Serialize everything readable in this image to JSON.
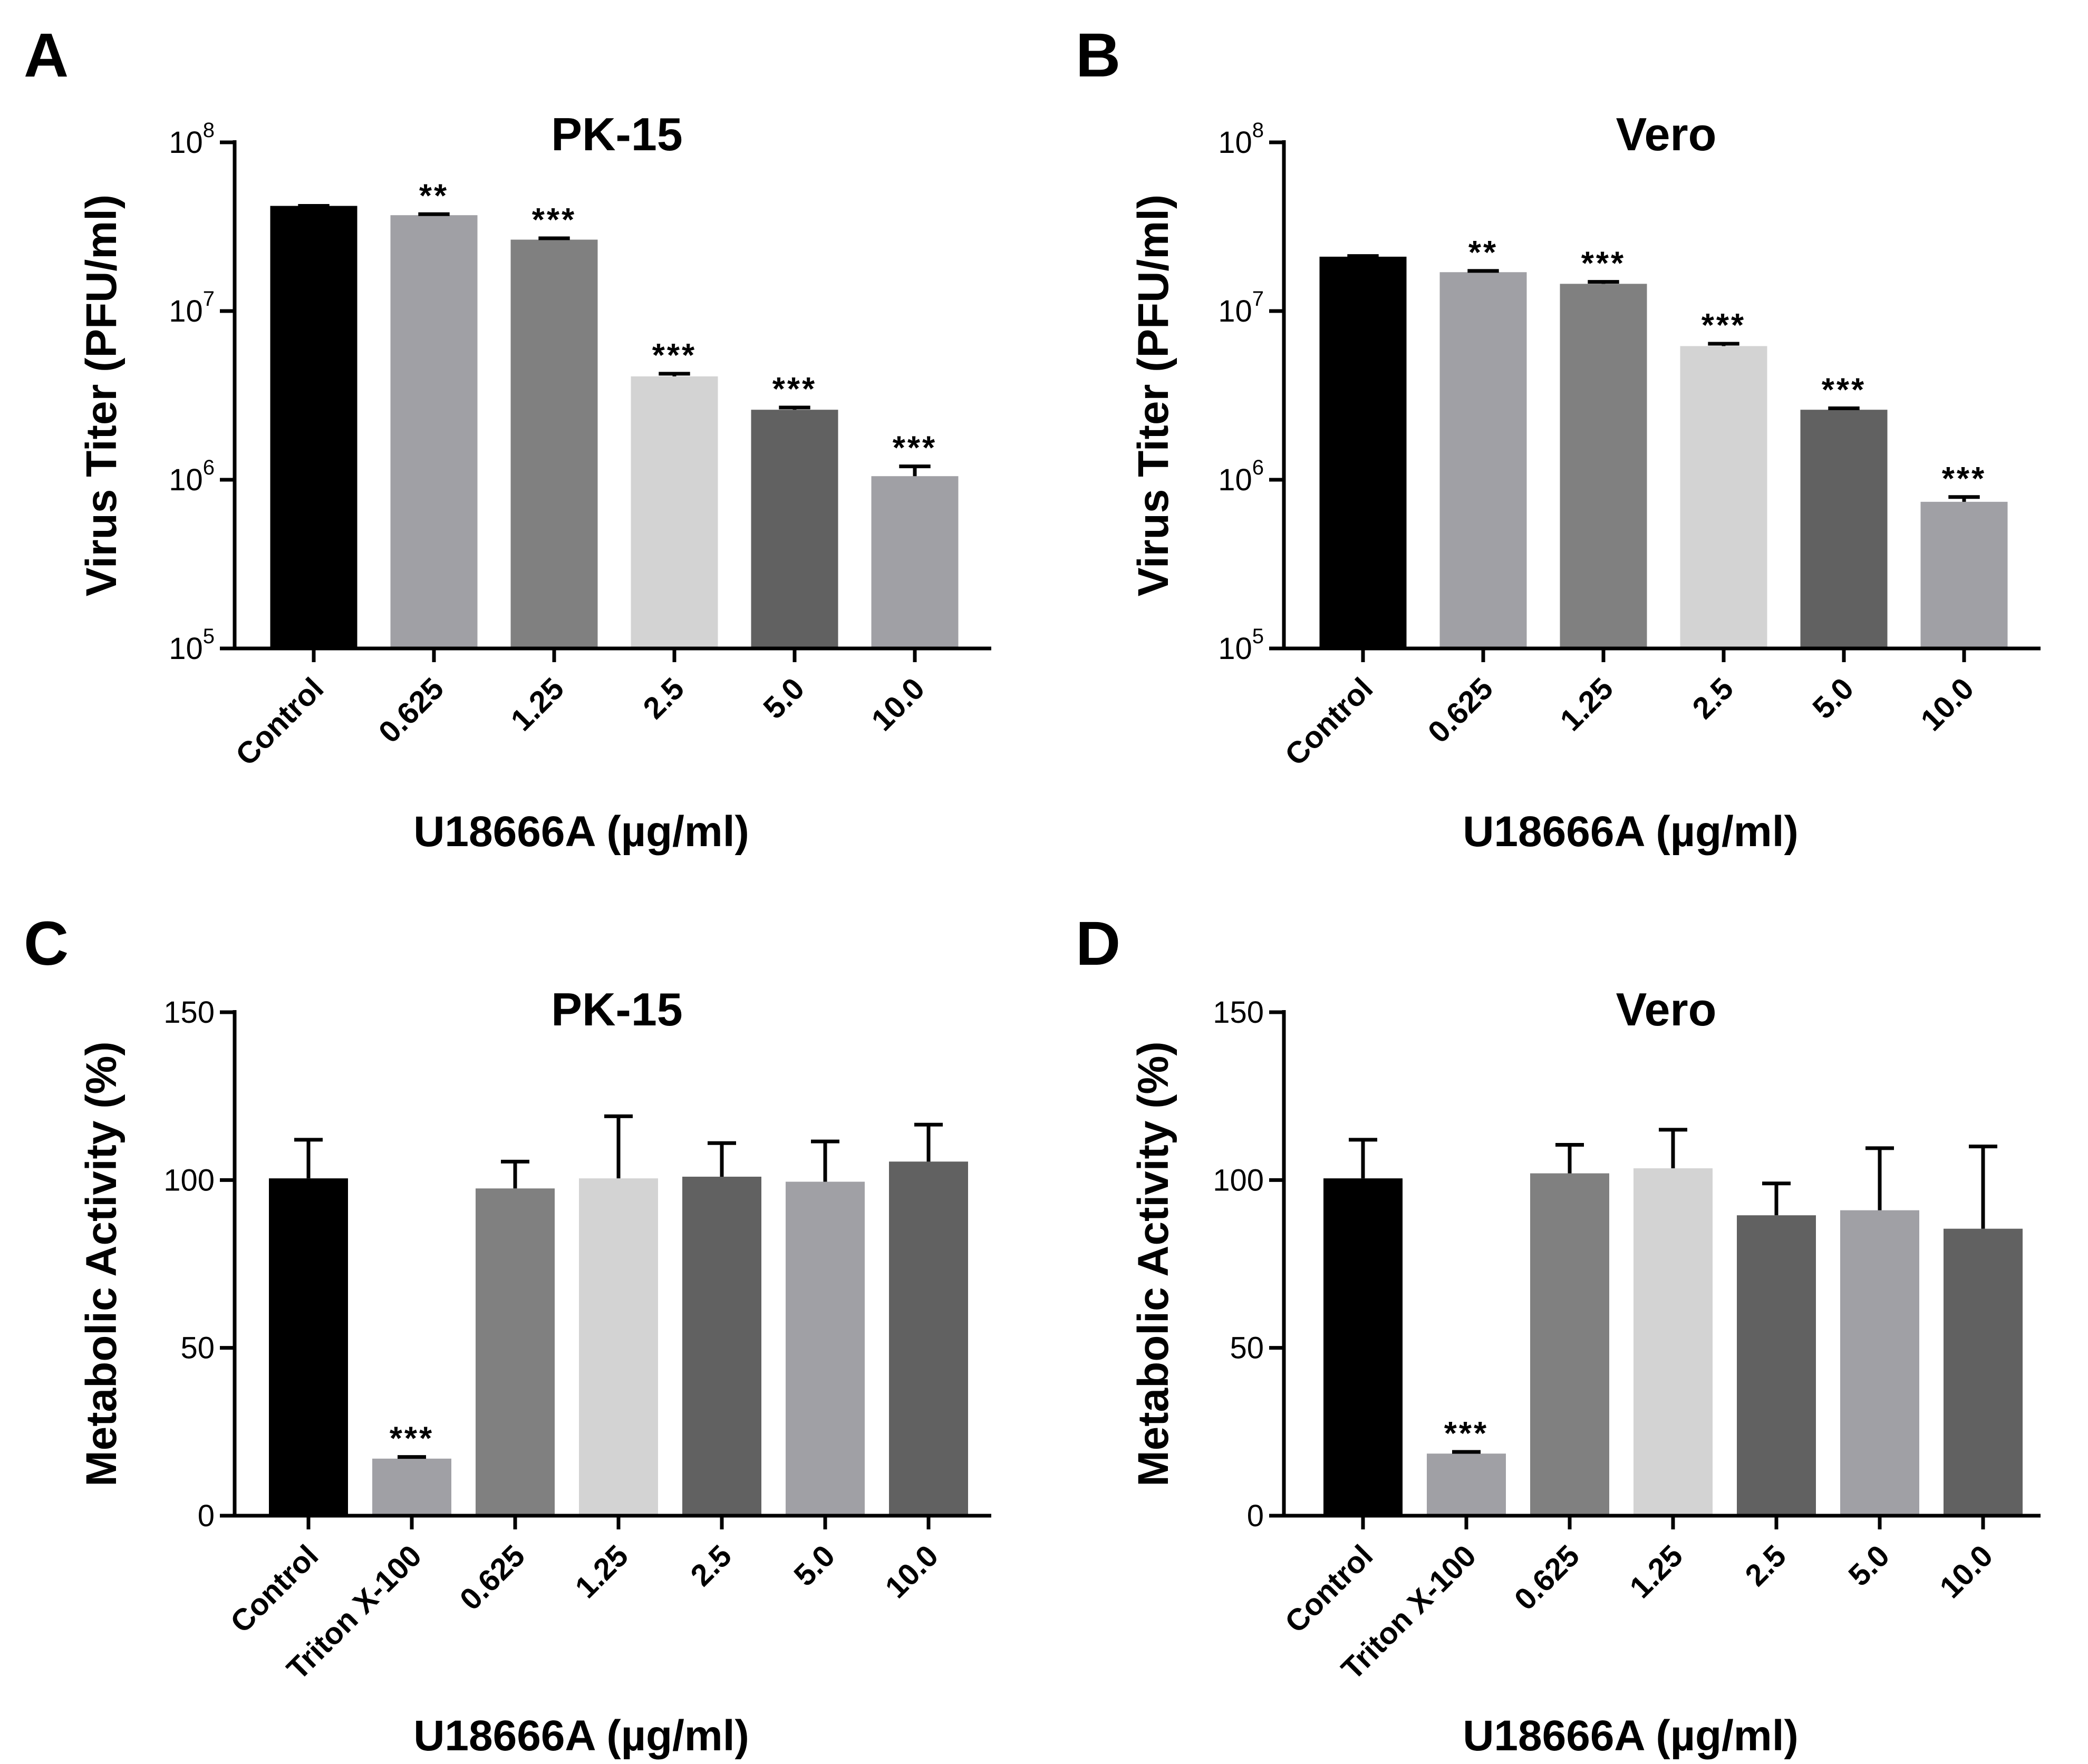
{
  "chart_data": [
    {
      "panel": "A",
      "type": "bar",
      "title": "PK-15",
      "ylabel": "Virus Titer (PFU/ml)",
      "xlabel": "U18666A (µg/ml)",
      "yscale": "log",
      "ylim": [
        100000,
        100000000
      ],
      "yticks": [
        {
          "value": 100000,
          "base": "10",
          "exp": "5"
        },
        {
          "value": 1000000,
          "base": "10",
          "exp": "6"
        },
        {
          "value": 10000000,
          "base": "10",
          "exp": "7"
        },
        {
          "value": 100000000,
          "base": "10",
          "exp": "8"
        }
      ],
      "categories": [
        "Control",
        "0.625",
        "1.25",
        "2.5",
        "5.0",
        "10.0"
      ],
      "values": [
        42000000,
        37000000,
        26500000,
        4100000,
        2600000,
        1050000
      ],
      "errors": [
        0,
        500000,
        500000,
        150000,
        80000,
        150000
      ],
      "significance": [
        "",
        "**",
        "***",
        "***",
        "***",
        "***"
      ],
      "colors": [
        "#000000",
        "#a0a0a5",
        "#808080",
        "#d3d3d3",
        "#616161",
        "#a0a0a5"
      ]
    },
    {
      "panel": "B",
      "type": "bar",
      "title": "Vero",
      "ylabel": "Virus Titer (PFU/ml)",
      "xlabel": "U18666A (µg/ml)",
      "yscale": "log",
      "ylim": [
        100000,
        100000000
      ],
      "yticks": [
        {
          "value": 100000,
          "base": "10",
          "exp": "5"
        },
        {
          "value": 1000000,
          "base": "10",
          "exp": "6"
        },
        {
          "value": 10000000,
          "base": "10",
          "exp": "7"
        },
        {
          "value": 100000000,
          "base": "10",
          "exp": "8"
        }
      ],
      "categories": [
        "Control",
        "0.625",
        "1.25",
        "2.5",
        "5.0",
        "10.0"
      ],
      "values": [
        21000000,
        17000000,
        14500000,
        6200000,
        2600000,
        740000
      ],
      "errors": [
        200000,
        300000,
        400000,
        200000,
        50000,
        50000
      ],
      "significance": [
        "",
        "**",
        "***",
        "***",
        "***",
        "***"
      ],
      "colors": [
        "#000000",
        "#a0a0a5",
        "#808080",
        "#d3d3d3",
        "#616161",
        "#a0a0a5"
      ]
    },
    {
      "panel": "C",
      "type": "bar",
      "title": "PK-15",
      "ylabel": "Metabolic Activity (%)",
      "xlabel": "U18666A (µg/ml)",
      "yscale": "linear",
      "ylim": [
        0,
        150
      ],
      "yticks": [
        {
          "value": 0,
          "label": "0"
        },
        {
          "value": 50,
          "label": "50"
        },
        {
          "value": 100,
          "label": "100"
        },
        {
          "value": 150,
          "label": "150"
        }
      ],
      "categories": [
        "Control",
        "Triton X-100",
        "0.625",
        "1.25",
        "2.5",
        "5.0",
        "10.0"
      ],
      "values": [
        100.5,
        17,
        97.5,
        100.5,
        101,
        99.5,
        105.5
      ],
      "errors": [
        11.5,
        0.5,
        8,
        18.5,
        10,
        12,
        11
      ],
      "significance": [
        "",
        "***",
        "",
        "",
        "",
        "",
        ""
      ],
      "colors": [
        "#000000",
        "#a0a0a5",
        "#808080",
        "#d3d3d3",
        "#616161",
        "#a0a0a5",
        "#616161"
      ]
    },
    {
      "panel": "D",
      "type": "bar",
      "title": "Vero",
      "ylabel": "Metabolic Activity (%)",
      "xlabel": "U18666A (µg/ml)",
      "yscale": "linear",
      "ylim": [
        0,
        150
      ],
      "yticks": [
        {
          "value": 0,
          "label": "0"
        },
        {
          "value": 50,
          "label": "50"
        },
        {
          "value": 100,
          "label": "100"
        },
        {
          "value": 150,
          "label": "150"
        }
      ],
      "categories": [
        "Control",
        "Triton X-100",
        "0.625",
        "1.25",
        "2.5",
        "5.0",
        "10.0"
      ],
      "values": [
        100.5,
        18.5,
        102,
        103.5,
        89.5,
        91,
        85.5
      ],
      "errors": [
        11.5,
        0.5,
        8.5,
        11.5,
        9.5,
        18.5,
        24.5
      ],
      "significance": [
        "",
        "***",
        "",
        "",
        "",
        "",
        ""
      ],
      "colors": [
        "#000000",
        "#a0a0a5",
        "#808080",
        "#d3d3d3",
        "#616161",
        "#a0a0a5",
        "#616161"
      ]
    }
  ]
}
